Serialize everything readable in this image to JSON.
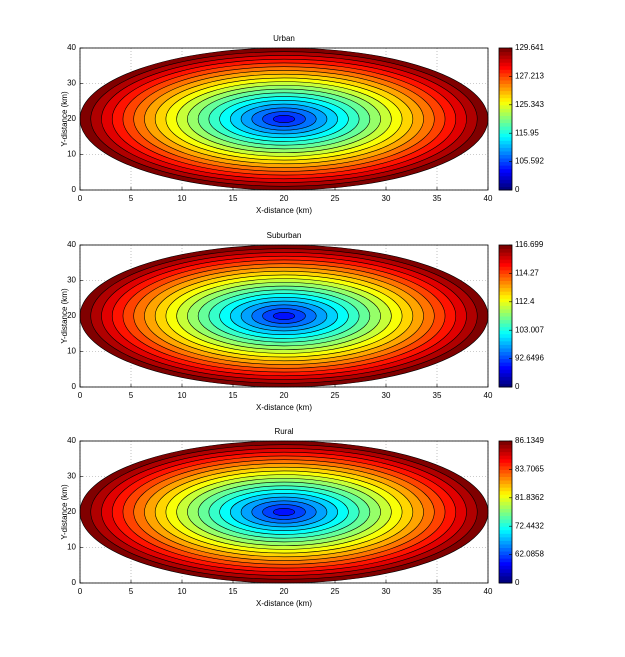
{
  "chart_data": [
    {
      "type": "contour",
      "title": "Urban",
      "xlabel": "X-distance (km)",
      "ylabel": "Y-distance (km)",
      "xlim": [
        0,
        40
      ],
      "ylim": [
        0,
        40
      ],
      "xticks": [
        0,
        5,
        10,
        15,
        20,
        25,
        30,
        35,
        40
      ],
      "yticks": [
        0,
        10,
        20,
        30,
        40
      ],
      "colorbar_ticks": [
        0,
        105.592,
        115.95,
        125.343,
        127.213,
        129.641
      ],
      "grid": true
    },
    {
      "type": "contour",
      "title": "Suburban",
      "xlabel": "X-distance (km)",
      "ylabel": "Y-distance (km)",
      "xlim": [
        0,
        40
      ],
      "ylim": [
        0,
        40
      ],
      "xticks": [
        0,
        5,
        10,
        15,
        20,
        25,
        30,
        35,
        40
      ],
      "yticks": [
        0,
        10,
        20,
        30,
        40
      ],
      "colorbar_ticks": [
        0,
        92.6496,
        103.007,
        112.4,
        114.27,
        116.699
      ],
      "grid": true
    },
    {
      "type": "contour",
      "title": "Rural",
      "xlabel": "X-distance (km)",
      "ylabel": "Y-distance (km)",
      "xlim": [
        0,
        40
      ],
      "ylim": [
        0,
        40
      ],
      "xticks": [
        0,
        5,
        10,
        15,
        20,
        25,
        30,
        35,
        40
      ],
      "yticks": [
        0,
        10,
        20,
        30,
        40
      ],
      "colorbar_ticks": [
        0,
        62.0858,
        72.4432,
        81.8362,
        83.7065,
        86.1349
      ],
      "grid": true
    }
  ]
}
